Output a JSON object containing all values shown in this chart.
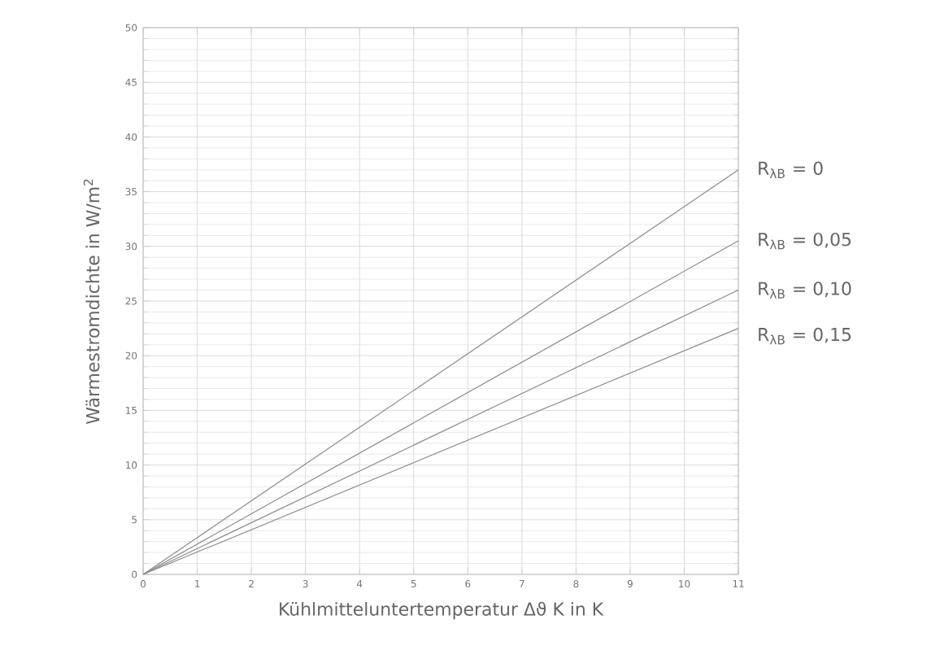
{
  "chart_data": {
    "type": "line",
    "xlabel": "Kühlmitteluntertemperatur Δϑ K in K",
    "ylabel": "Wärmestromdichte in W/m$^{2}$",
    "x": [
      0,
      11
    ],
    "series": [
      {
        "name": "R$_{λB}$ = 0",
        "color": "#8c8c8c",
        "values": [
          0,
          37
        ]
      },
      {
        "name": "R$_{λB}$ = 0,05",
        "color": "#8c8c8c",
        "values": [
          0,
          30.5
        ]
      },
      {
        "name": "R$_{λB}$ = 0,10",
        "color": "#8c8c8c",
        "values": [
          0,
          26
        ]
      },
      {
        "name": "R$_{λB}$ = 0,15",
        "color": "#8c8c8c",
        "values": [
          0,
          22.5
        ]
      }
    ],
    "xlim": [
      0,
      11
    ],
    "ylim": [
      0,
      50
    ],
    "xticks": [
      0,
      1,
      2,
      3,
      4,
      5,
      6,
      7,
      8,
      9,
      10,
      11
    ],
    "yticks": [
      0,
      5,
      10,
      15,
      20,
      25,
      30,
      35,
      40,
      45,
      50
    ],
    "grid": true,
    "marker": "none",
    "line_style": "solid"
  }
}
